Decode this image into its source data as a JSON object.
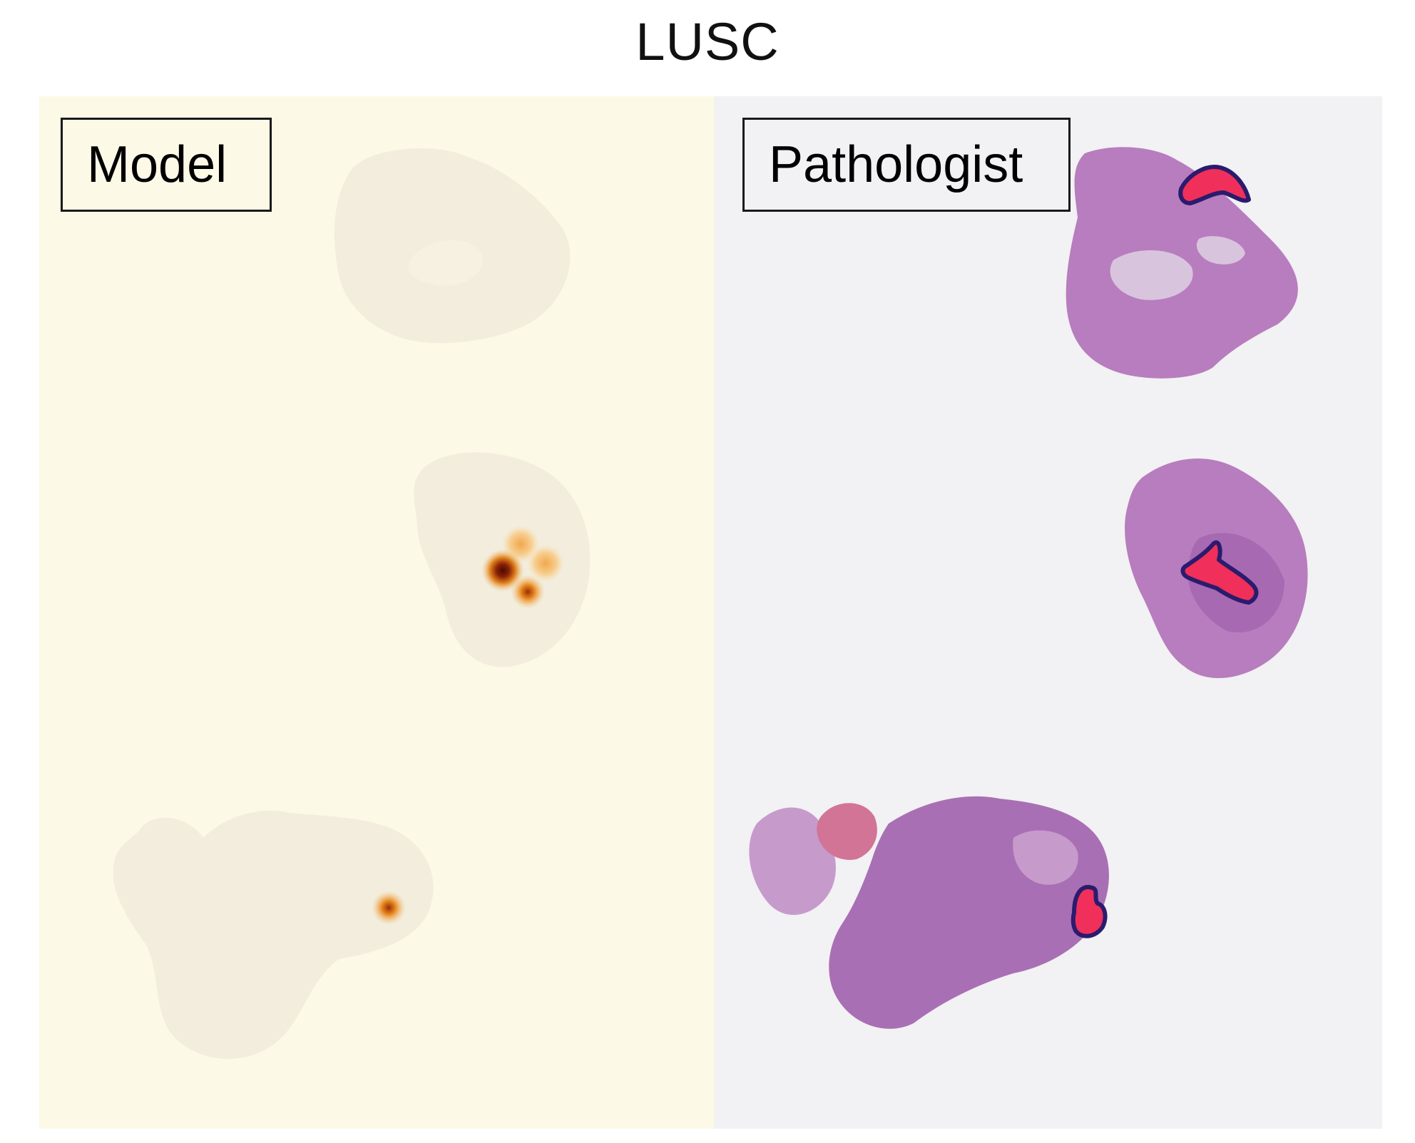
{
  "figure": {
    "title": "LUSC"
  },
  "panels": {
    "model": {
      "label": "Model",
      "background_color": "#FCF9E6",
      "tissue_color": "#F1EBDC",
      "heat_colors": {
        "low": "#F7C986",
        "mid": "#E8891F",
        "high": "#6E1405"
      }
    },
    "pathologist": {
      "label": "Pathologist",
      "background_color": "#F2F1F3",
      "tissue_color": "#B77DBE",
      "tissue_dark_color": "#9B5AA6",
      "annotation_fill": "#F0305A",
      "annotation_outline": "#2B1B6E"
    }
  }
}
